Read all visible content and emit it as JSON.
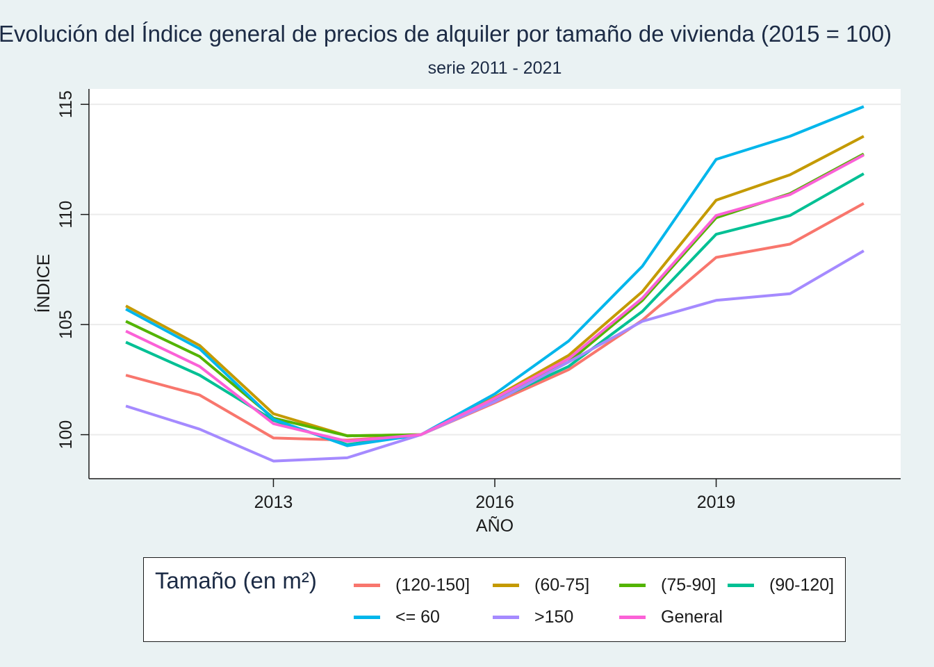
{
  "chart_data": {
    "type": "line",
    "title": "Evolución del Índice general de precios de alquiler por tamaño de vivienda (2015 = 100)",
    "subtitle": "serie 2011 - 2021",
    "xlabel": "AÑO",
    "ylabel": "ÍNDICE",
    "x": [
      2011,
      2012,
      2013,
      2014,
      2015,
      2016,
      2017,
      2018,
      2019,
      2020,
      2021
    ],
    "xlim": [
      2010.5,
      2021.5
    ],
    "ylim": [
      98,
      115.7
    ],
    "x_ticks": [
      2013,
      2016,
      2019
    ],
    "x_tick_labels": [
      "2013",
      "2016",
      "2019"
    ],
    "y_ticks": [
      100,
      105,
      110,
      115
    ],
    "y_tick_labels": [
      "100",
      "105",
      "110",
      "115"
    ],
    "grid": "horizontal",
    "legend": {
      "title": "Tamaño (en m²)",
      "position": "bottom"
    },
    "series": [
      {
        "name": "(120-150]",
        "color": "#f8766d",
        "values": [
          102.7,
          101.8,
          99.85,
          99.75,
          100.0,
          101.45,
          102.95,
          105.2,
          108.05,
          108.65,
          110.5
        ]
      },
      {
        "name": "(60-75]",
        "color": "#c49a00",
        "values": [
          105.85,
          104.05,
          100.95,
          99.95,
          100.0,
          101.7,
          103.6,
          106.5,
          110.65,
          111.8,
          113.55
        ]
      },
      {
        "name": "(75-90]",
        "color": "#53b400",
        "values": [
          105.15,
          103.55,
          100.75,
          99.95,
          100.0,
          101.6,
          103.3,
          106.1,
          109.85,
          110.95,
          112.75
        ]
      },
      {
        "name": "(90-120]",
        "color": "#00c094",
        "values": [
          104.2,
          102.7,
          100.65,
          99.55,
          100.0,
          101.55,
          103.1,
          105.6,
          109.1,
          109.95,
          111.85
        ]
      },
      {
        "name": "<= 60",
        "color": "#00b6eb",
        "values": [
          105.7,
          103.9,
          100.7,
          99.5,
          100.0,
          101.85,
          104.25,
          107.65,
          112.5,
          113.55,
          114.9
        ]
      },
      {
        "name": ">150",
        "color": "#a58aff",
        "values": [
          101.3,
          100.25,
          98.8,
          98.95,
          100.0,
          101.5,
          103.3,
          105.15,
          106.1,
          106.4,
          108.35
        ]
      },
      {
        "name": "General",
        "color": "#fb61d7",
        "values": [
          104.7,
          103.1,
          100.5,
          99.7,
          100.0,
          101.65,
          103.45,
          106.2,
          109.95,
          110.9,
          112.7
        ]
      }
    ]
  }
}
